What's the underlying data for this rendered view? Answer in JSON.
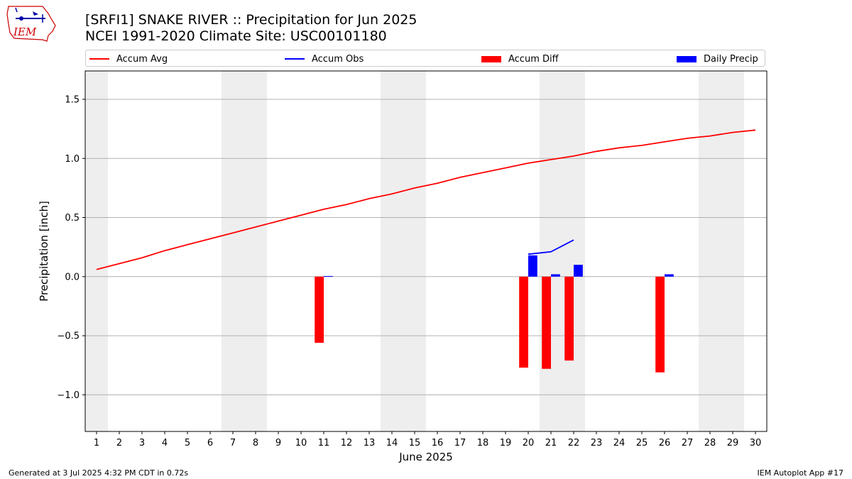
{
  "header": {
    "title_line1": "[SRFI1] SNAKE RIVER :: Precipitation for Jun 2025",
    "title_line2": "NCEI 1991-2020 Climate Site: USC00101180"
  },
  "logo": {
    "text": "IEM",
    "color": "#cc0000"
  },
  "footer": {
    "left": "Generated at 3 Jul 2025 4:32 PM CDT in 0.72s",
    "right": "IEM Autoplot App #17"
  },
  "colors": {
    "accum_avg": "#ff0000",
    "accum_obs": "#0000ff",
    "accum_diff": "#ff0000",
    "daily_precip": "#0000ff",
    "weekend_shade": "#eeeeee",
    "grid": "#b0b0b0"
  },
  "chart_data": {
    "type": "bar",
    "xlabel": "June 2025",
    "ylabel": "Precipitation [inch]",
    "xlim": [
      0.5,
      30.5
    ],
    "ylim": [
      -1.31,
      1.74
    ],
    "xticks": [
      "1",
      "2",
      "3",
      "4",
      "5",
      "6",
      "7",
      "8",
      "9",
      "10",
      "11",
      "12",
      "13",
      "14",
      "15",
      "16",
      "17",
      "18",
      "19",
      "20",
      "21",
      "22",
      "23",
      "24",
      "25",
      "26",
      "27",
      "28",
      "29",
      "30"
    ],
    "yticks": [
      -1.0,
      -0.5,
      0.0,
      0.5,
      1.0,
      1.5
    ],
    "ytick_labels": [
      "−1.0",
      "−0.5",
      "0.0",
      "0.5",
      "1.0",
      "1.5"
    ],
    "grid": "horizontal",
    "legend_position": "top",
    "weekend_shading": [
      [
        0.5,
        1.5
      ],
      [
        6.5,
        8.5
      ],
      [
        13.5,
        15.5
      ],
      [
        20.5,
        22.5
      ],
      [
        27.5,
        29.5
      ]
    ],
    "series": [
      {
        "name": "Accum Avg",
        "kind": "line",
        "x": [
          1,
          2,
          3,
          4,
          5,
          6,
          7,
          8,
          9,
          10,
          11,
          12,
          13,
          14,
          15,
          16,
          17,
          18,
          19,
          20,
          21,
          22,
          23,
          24,
          25,
          26,
          27,
          28,
          29,
          30
        ],
        "values": [
          0.06,
          0.11,
          0.16,
          0.22,
          0.27,
          0.32,
          0.37,
          0.42,
          0.47,
          0.52,
          0.57,
          0.61,
          0.66,
          0.7,
          0.75,
          0.79,
          0.84,
          0.88,
          0.92,
          0.96,
          0.99,
          1.02,
          1.06,
          1.09,
          1.11,
          1.14,
          1.17,
          1.19,
          1.22,
          1.24
        ]
      },
      {
        "name": "Accum Obs",
        "kind": "line",
        "x": [
          20,
          21,
          22
        ],
        "values": [
          0.19,
          0.21,
          0.31
        ]
      },
      {
        "name": "Accum Diff",
        "kind": "bar",
        "x": [
          11,
          20,
          21,
          22,
          26
        ],
        "values": [
          -0.56,
          -0.77,
          -0.78,
          -0.71,
          -0.81
        ]
      },
      {
        "name": "Daily Precip",
        "kind": "bar",
        "x": [
          11,
          20,
          21,
          22,
          26
        ],
        "values": [
          0.005,
          0.18,
          0.02,
          0.1,
          0.02
        ]
      }
    ]
  }
}
